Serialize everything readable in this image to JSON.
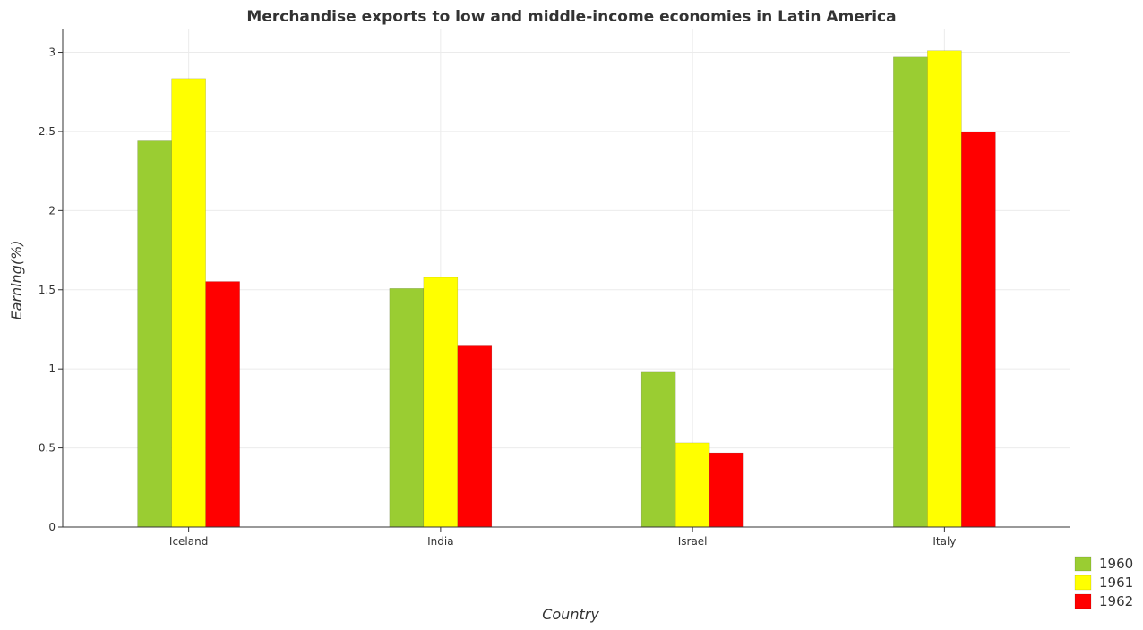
{
  "chart_data": {
    "type": "bar",
    "title": "Merchandise exports to low and middle-income economies in Latin America",
    "xlabel": "Country",
    "ylabel": "Earning(%)",
    "categories": [
      "Iceland",
      "India",
      "Israel",
      "Italy"
    ],
    "series": [
      {
        "name": "1960",
        "color": "#9acd32",
        "values": [
          2.44,
          1.508,
          0.979,
          2.97
        ]
      },
      {
        "name": "1961",
        "color": "#ffff00",
        "values": [
          2.834,
          1.578,
          0.532,
          3.01
        ]
      },
      {
        "name": "1962",
        "color": "#ff0000",
        "values": [
          1.552,
          1.145,
          0.469,
          2.495
        ]
      }
    ],
    "ylim": [
      0,
      3.15
    ],
    "yticks": [
      0,
      0.5,
      1,
      1.5,
      2,
      2.5,
      3
    ],
    "ytick_labels": [
      "0",
      "0.5",
      "1",
      "1.5",
      "2",
      "2.5",
      "3"
    ],
    "grid": true,
    "legend_position": "bottom-right"
  }
}
